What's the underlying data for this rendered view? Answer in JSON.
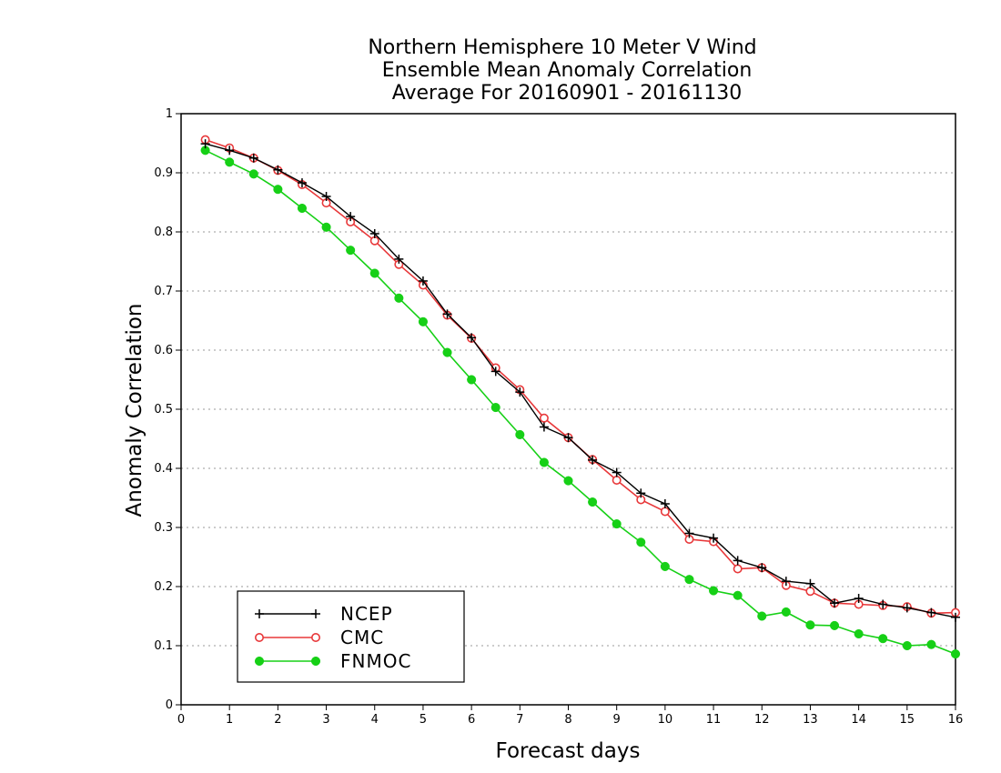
{
  "chart_data": {
    "type": "line",
    "title": [
      "Northern Hemisphere 10 Meter V Wind",
      "Ensemble Mean Anomaly Correlation",
      "Average For 20160901 - 20161130"
    ],
    "xlabel": "Forecast days",
    "ylabel": "Anomaly Correlation",
    "xlim": [
      0,
      16
    ],
    "ylim": [
      0,
      1
    ],
    "x_ticks": [
      0,
      1,
      2,
      3,
      4,
      5,
      6,
      7,
      8,
      9,
      10,
      11,
      12,
      13,
      14,
      15,
      16
    ],
    "y_ticks": [
      0,
      0.1,
      0.2,
      0.3,
      0.4,
      0.5,
      0.6,
      0.7,
      0.8,
      0.9,
      1
    ],
    "y_tick_labels": [
      "0",
      "0.1",
      "0.2",
      "0.3",
      "0.4",
      "0.5",
      "0.6",
      "0.7",
      "0.8",
      "0.9",
      "1"
    ],
    "grid": "horizontal dotted",
    "legend_position": "bottom-left",
    "x": [
      0.5,
      1,
      1.5,
      2,
      2.5,
      3,
      3.5,
      4,
      4.5,
      5,
      5.5,
      6,
      6.5,
      7,
      7.5,
      8,
      8.5,
      9,
      9.5,
      10,
      10.5,
      11,
      11.5,
      12,
      12.5,
      13,
      13.5,
      14,
      14.5,
      15,
      15.5,
      16
    ],
    "series": [
      {
        "name": "NCEP",
        "color": "#000000",
        "marker": "plus",
        "values": [
          0.949,
          0.938,
          0.925,
          0.905,
          0.883,
          0.86,
          0.826,
          0.797,
          0.754,
          0.717,
          0.661,
          0.621,
          0.564,
          0.529,
          0.47,
          0.452,
          0.414,
          0.393,
          0.358,
          0.34,
          0.29,
          0.282,
          0.244,
          0.232,
          0.209,
          0.205,
          0.172,
          0.18,
          0.17,
          0.164,
          0.156,
          0.148
        ]
      },
      {
        "name": "CMC",
        "color": "#e8383a",
        "marker": "open-circle",
        "values": [
          0.956,
          0.942,
          0.925,
          0.904,
          0.88,
          0.849,
          0.817,
          0.785,
          0.745,
          0.71,
          0.659,
          0.62,
          0.57,
          0.533,
          0.485,
          0.452,
          0.415,
          0.38,
          0.347,
          0.327,
          0.28,
          0.276,
          0.23,
          0.232,
          0.202,
          0.192,
          0.172,
          0.17,
          0.168,
          0.166,
          0.155,
          0.156
        ]
      },
      {
        "name": "FNMOC",
        "color": "#16d016",
        "marker": "filled-circle",
        "values": [
          0.938,
          0.918,
          0.898,
          0.872,
          0.84,
          0.808,
          0.769,
          0.73,
          0.688,
          0.648,
          0.596,
          0.55,
          0.503,
          0.457,
          0.41,
          0.379,
          0.343,
          0.306,
          0.275,
          0.234,
          0.212,
          0.193,
          0.185,
          0.15,
          0.157,
          0.135,
          0.134,
          0.12,
          0.112,
          0.1,
          0.102,
          0.086
        ]
      }
    ]
  }
}
